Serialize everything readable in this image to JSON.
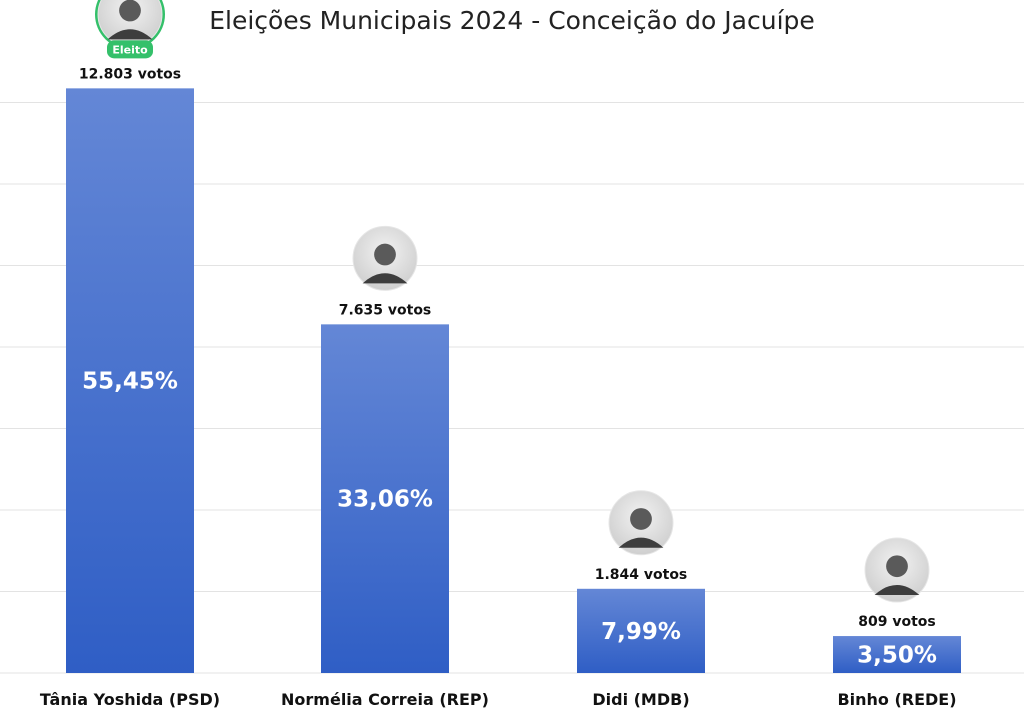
{
  "title": "Eleições Municipais 2024 - Conceição do Jacuípe",
  "colors": {
    "bar_top": "#6487d6",
    "bar_bottom": "#2f5ec5",
    "elected": "#34c06a",
    "grid": "#e3e3e3"
  },
  "chart_data": {
    "type": "bar",
    "title": "Eleições Municipais 2024 - Conceição do Jacuípe",
    "xlabel": "",
    "ylabel": "",
    "ylim": [
      0,
      14300
    ],
    "grid": true,
    "categories": [
      "Tânia Yoshida (PSD)",
      "Normélia Correia (REP)",
      "Didi (MDB)",
      "Binho (REDE)"
    ],
    "series": [
      {
        "values": [
          12803,
          7635,
          1844,
          809
        ]
      }
    ],
    "vote_labels": [
      "12.803 votos",
      "7.635 votos",
      "1.844 votos",
      "809 votos"
    ],
    "percent_labels": [
      "55,45%",
      "33,06%",
      "7,99%",
      "3,50%"
    ],
    "photo_icons": [
      "candidate-photo-icon",
      "candidate-photo-icon",
      "candidate-photo-icon",
      "candidate-photo-icon"
    ],
    "elected_badge": {
      "index": 0,
      "label": "Eleito"
    }
  }
}
